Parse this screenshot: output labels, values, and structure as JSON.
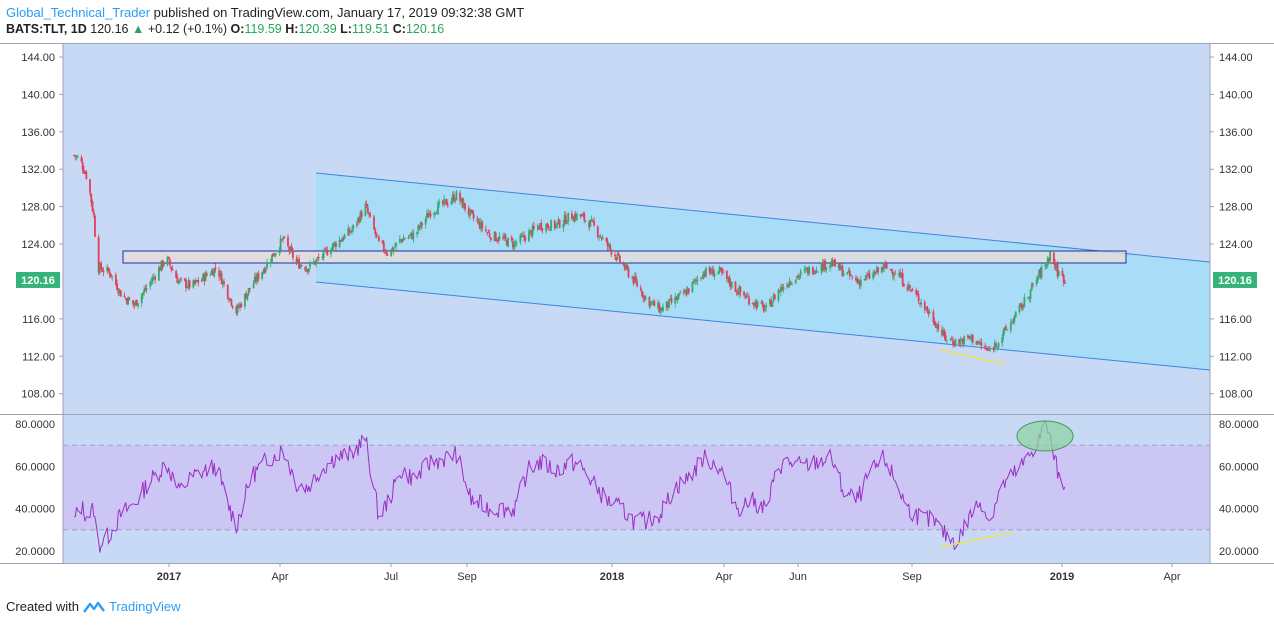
{
  "header": {
    "author": "Global_Technical_Trader",
    "published": "published on TradingView.com, January 17, 2019 09:32:38 GMT",
    "symbol": "BATS:TLT, 1D",
    "last": "120.16",
    "change": "+0.12 (+0.1%)",
    "o_label": "O:",
    "o": "119.59",
    "h_label": "H:",
    "h": "120.39",
    "l_label": "L:",
    "l": "119.51",
    "c_label": "C:",
    "c": "120.16"
  },
  "footer": {
    "created": "Created with",
    "brand": "TradingView"
  },
  "colors": {
    "price_bg": "#c8d9f5",
    "channel_fill": "#a9dcf7",
    "channel_line": "#3a86e0",
    "rect_fill": "#e9dcd8",
    "rect_border": "#1a2f9e",
    "candle_up": "#3aa86b",
    "candle_down": "#e0405a",
    "rsi_line": "#9b2fc4",
    "rsi_band": "#cbc2f3",
    "badge": "#35b47a",
    "divergence": "#f5e33a",
    "ellipse": "#8ed3a3"
  },
  "chart_data": [
    {
      "type": "candlestick",
      "series": [
        {
          "name": "BATS:TLT, 1D"
        }
      ],
      "y_ticks": [
        "144.00",
        "140.00",
        "136.00",
        "132.00",
        "128.00",
        "124.00",
        "116.00",
        "112.00",
        "108.00"
      ],
      "ylim": [
        106,
        145.5
      ],
      "x_ticks": [
        "2017",
        "Apr",
        "Jul",
        "Sep",
        "2018",
        "Apr",
        "Jun",
        "Sep",
        "2019",
        "Apr"
      ],
      "last_price_label": "120.16",
      "ohlc_points": [
        [
          "2016-11-01",
          133.5
        ],
        [
          "2016-11-06",
          133
        ],
        [
          "2016-11-12",
          131
        ],
        [
          "2016-11-17",
          127
        ],
        [
          "2016-11-20",
          121.5
        ],
        [
          "2016-11-30",
          121
        ],
        [
          "2016-12-10",
          118.5
        ],
        [
          "2016-12-20",
          117.5
        ],
        [
          "2016-12-31",
          119.5
        ],
        [
          "2017-01-10",
          121.5
        ],
        [
          "2017-01-15",
          122.5
        ],
        [
          "2017-01-25",
          120
        ],
        [
          "2017-02-05",
          119.5
        ],
        [
          "2017-02-15",
          120.5
        ],
        [
          "2017-02-25",
          121.5
        ],
        [
          "2017-03-05",
          119
        ],
        [
          "2017-03-13",
          116.8
        ],
        [
          "2017-03-25",
          119.5
        ],
        [
          "2017-04-05",
          121.5
        ],
        [
          "2017-04-15",
          123.5
        ],
        [
          "2017-04-20",
          124.5
        ],
        [
          "2017-05-01",
          122
        ],
        [
          "2017-05-10",
          121.5
        ],
        [
          "2017-05-20",
          122.5
        ],
        [
          "2017-06-01",
          124
        ],
        [
          "2017-06-15",
          125.5
        ],
        [
          "2017-06-26",
          128
        ],
        [
          "2017-07-07",
          124
        ],
        [
          "2017-07-15",
          123
        ],
        [
          "2017-07-25",
          124.5
        ],
        [
          "2017-08-05",
          125
        ],
        [
          "2017-08-18",
          127.5
        ],
        [
          "2017-09-01",
          128.5
        ],
        [
          "2017-09-08",
          129.2
        ],
        [
          "2017-09-20",
          127
        ],
        [
          "2017-10-05",
          125
        ],
        [
          "2017-10-25",
          124
        ],
        [
          "2017-11-05",
          125
        ],
        [
          "2017-11-15",
          126
        ],
        [
          "2017-11-28",
          126
        ],
        [
          "2017-12-10",
          127
        ],
        [
          "2017-12-18",
          127
        ],
        [
          "2017-12-28",
          126
        ],
        [
          "2018-01-08",
          124
        ],
        [
          "2018-01-20",
          122
        ],
        [
          "2018-01-31",
          120
        ],
        [
          "2018-02-10",
          118
        ],
        [
          "2018-02-21",
          117
        ],
        [
          "2018-03-05",
          118
        ],
        [
          "2018-03-15",
          119
        ],
        [
          "2018-03-28",
          121
        ],
        [
          "2018-04-10",
          121
        ],
        [
          "2018-04-25",
          119
        ],
        [
          "2018-05-05",
          118
        ],
        [
          "2018-05-18",
          117
        ],
        [
          "2018-05-28",
          119
        ],
        [
          "2018-06-05",
          120
        ],
        [
          "2018-06-18",
          121
        ],
        [
          "2018-06-28",
          121.5
        ],
        [
          "2018-07-10",
          122
        ],
        [
          "2018-07-20",
          121
        ],
        [
          "2018-07-31",
          120
        ],
        [
          "2018-08-10",
          120.5
        ],
        [
          "2018-08-22",
          121.5
        ],
        [
          "2018-09-01",
          121
        ],
        [
          "2018-09-10",
          119.5
        ],
        [
          "2018-09-20",
          118
        ],
        [
          "2018-10-01",
          116
        ],
        [
          "2018-10-10",
          114
        ],
        [
          "2018-10-20",
          113.5
        ],
        [
          "2018-11-01",
          114
        ],
        [
          "2018-11-10",
          113
        ],
        [
          "2018-11-15",
          112.5
        ],
        [
          "2018-11-25",
          114
        ],
        [
          "2018-12-05",
          116
        ],
        [
          "2018-12-15",
          118
        ],
        [
          "2018-12-25",
          120.5
        ],
        [
          "2019-01-01",
          122
        ],
        [
          "2019-01-04",
          123
        ],
        [
          "2019-01-10",
          121
        ],
        [
          "2019-01-16",
          120.2
        ]
      ]
    },
    {
      "type": "line",
      "series": [
        {
          "name": ""
        }
      ],
      "y_ticks": [
        "80.0000",
        "60.0000",
        "40.0000",
        "20.0000"
      ],
      "ylim": [
        14,
        84
      ],
      "band": [
        30,
        70
      ],
      "points": [
        [
          "2016-11-01",
          34
        ],
        [
          "2016-11-06",
          42
        ],
        [
          "2016-11-12",
          36
        ],
        [
          "2016-11-17",
          40
        ],
        [
          "2016-11-20",
          22
        ],
        [
          "2016-11-30",
          28
        ],
        [
          "2016-12-10",
          38
        ],
        [
          "2016-12-20",
          42
        ],
        [
          "2016-12-31",
          52
        ],
        [
          "2017-01-10",
          58
        ],
        [
          "2017-01-15",
          62
        ],
        [
          "2017-01-25",
          48
        ],
        [
          "2017-02-05",
          55
        ],
        [
          "2017-02-15",
          58
        ],
        [
          "2017-02-25",
          60
        ],
        [
          "2017-03-05",
          44
        ],
        [
          "2017-03-13",
          32
        ],
        [
          "2017-03-25",
          55
        ],
        [
          "2017-04-05",
          62
        ],
        [
          "2017-04-15",
          66
        ],
        [
          "2017-04-20",
          68
        ],
        [
          "2017-05-01",
          52
        ],
        [
          "2017-05-10",
          50
        ],
        [
          "2017-05-20",
          58
        ],
        [
          "2017-06-01",
          64
        ],
        [
          "2017-06-15",
          66
        ],
        [
          "2017-06-26",
          73
        ],
        [
          "2017-07-07",
          36
        ],
        [
          "2017-07-15",
          44
        ],
        [
          "2017-07-25",
          58
        ],
        [
          "2017-08-05",
          54
        ],
        [
          "2017-08-18",
          62
        ],
        [
          "2017-09-01",
          64
        ],
        [
          "2017-09-08",
          66
        ],
        [
          "2017-09-20",
          44
        ],
        [
          "2017-10-05",
          40
        ],
        [
          "2017-10-25",
          40
        ],
        [
          "2017-11-05",
          58
        ],
        [
          "2017-11-15",
          62
        ],
        [
          "2017-11-28",
          58
        ],
        [
          "2017-12-10",
          62
        ],
        [
          "2017-12-18",
          60
        ],
        [
          "2017-12-28",
          52
        ],
        [
          "2018-01-08",
          44
        ],
        [
          "2018-01-20",
          40
        ],
        [
          "2018-01-31",
          34
        ],
        [
          "2018-02-10",
          34
        ],
        [
          "2018-02-21",
          38
        ],
        [
          "2018-03-05",
          50
        ],
        [
          "2018-03-15",
          54
        ],
        [
          "2018-03-28",
          64
        ],
        [
          "2018-04-10",
          60
        ],
        [
          "2018-04-25",
          40
        ],
        [
          "2018-05-05",
          44
        ],
        [
          "2018-05-18",
          40
        ],
        [
          "2018-05-28",
          60
        ],
        [
          "2018-06-05",
          62
        ],
        [
          "2018-06-18",
          60
        ],
        [
          "2018-06-28",
          62
        ],
        [
          "2018-07-10",
          64
        ],
        [
          "2018-07-20",
          48
        ],
        [
          "2018-07-31",
          44
        ],
        [
          "2018-08-10",
          56
        ],
        [
          "2018-08-22",
          64
        ],
        [
          "2018-09-01",
          52
        ],
        [
          "2018-09-10",
          40
        ],
        [
          "2018-09-20",
          36
        ],
        [
          "2018-10-01",
          34
        ],
        [
          "2018-10-10",
          28
        ],
        [
          "2018-10-20",
          24
        ],
        [
          "2018-11-01",
          38
        ],
        [
          "2018-11-10",
          44
        ],
        [
          "2018-11-15",
          34
        ],
        [
          "2018-11-25",
          50
        ],
        [
          "2018-12-05",
          56
        ],
        [
          "2018-12-15",
          62
        ],
        [
          "2018-12-25",
          72
        ],
        [
          "2019-01-01",
          80
        ],
        [
          "2019-01-04",
          72
        ],
        [
          "2019-01-10",
          58
        ],
        [
          "2019-01-16",
          51
        ]
      ]
    }
  ]
}
